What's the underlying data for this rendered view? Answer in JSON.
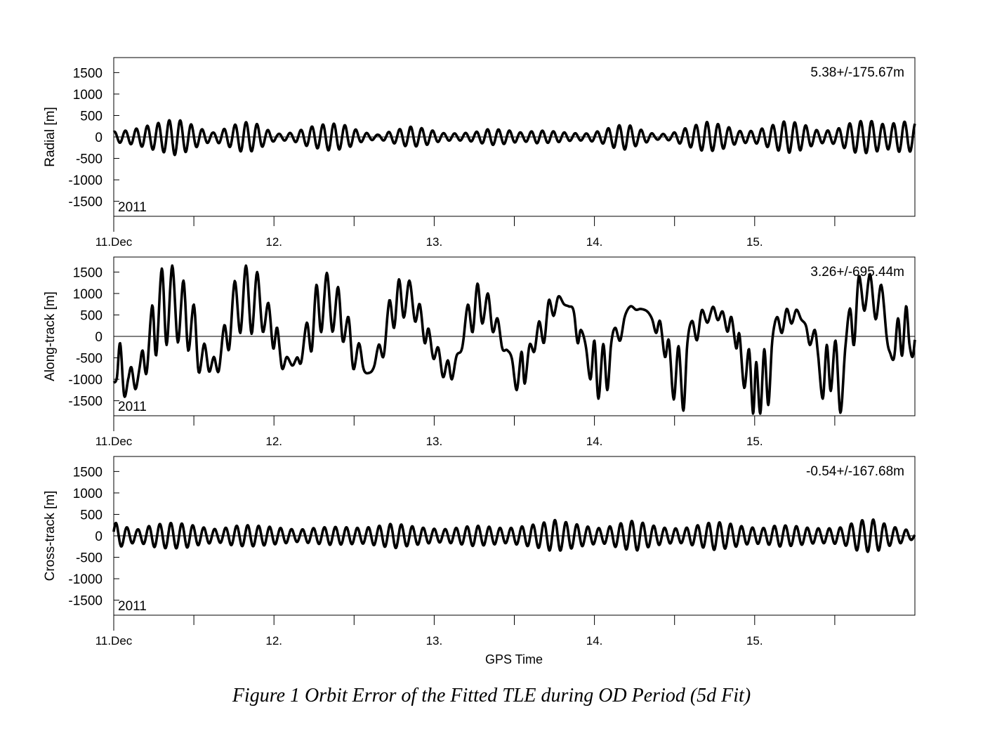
{
  "figure": {
    "caption": "Figure 1 Orbit Error of the Fitted TLE during OD Period (5d Fit)",
    "xlabel": "GPS Time",
    "year_label": "2011"
  },
  "chart_data": [
    {
      "type": "line",
      "ylabel": "Radial [m]",
      "annotation": "5.38+/-175.67m",
      "ylim": [
        -1850,
        1850
      ],
      "yticks": [
        1500,
        1000,
        500,
        0,
        -500,
        -1000,
        -1500
      ],
      "xlim": [
        0,
        5
      ],
      "xticks": [
        0,
        1,
        2,
        3,
        4
      ],
      "xtick_labels": [
        "11.Dec",
        "12.",
        "13.",
        "14.",
        "15."
      ],
      "x_unit": "day",
      "envelope": [
        [
          0.0,
          120
        ],
        [
          0.08,
          150
        ],
        [
          0.15,
          200
        ],
        [
          0.25,
          300
        ],
        [
          0.38,
          420
        ],
        [
          0.45,
          350
        ],
        [
          0.55,
          180
        ],
        [
          0.62,
          100
        ],
        [
          0.7,
          200
        ],
        [
          0.8,
          350
        ],
        [
          0.88,
          330
        ],
        [
          0.95,
          180
        ],
        [
          1.02,
          70
        ],
        [
          1.12,
          100
        ],
        [
          1.22,
          230
        ],
        [
          1.35,
          320
        ],
        [
          1.45,
          270
        ],
        [
          1.55,
          110
        ],
        [
          1.65,
          50
        ],
        [
          1.75,
          150
        ],
        [
          1.85,
          240
        ],
        [
          1.95,
          190
        ],
        [
          2.05,
          90
        ],
        [
          2.15,
          80
        ],
        [
          2.25,
          110
        ],
        [
          2.35,
          190
        ],
        [
          2.45,
          160
        ],
        [
          2.55,
          100
        ],
        [
          2.65,
          150
        ],
        [
          2.75,
          130
        ],
        [
          2.85,
          90
        ],
        [
          2.95,
          80
        ],
        [
          3.05,
          150
        ],
        [
          3.12,
          250
        ],
        [
          3.2,
          300
        ],
        [
          3.28,
          180
        ],
        [
          3.38,
          60
        ],
        [
          3.48,
          80
        ],
        [
          3.58,
          220
        ],
        [
          3.7,
          350
        ],
        [
          3.8,
          280
        ],
        [
          3.9,
          140
        ],
        [
          4.0,
          140
        ],
        [
          4.1,
          260
        ],
        [
          4.2,
          380
        ],
        [
          4.3,
          300
        ],
        [
          4.4,
          140
        ],
        [
          4.5,
          160
        ],
        [
          4.62,
          360
        ],
        [
          4.72,
          380
        ],
        [
          4.82,
          280
        ],
        [
          4.92,
          360
        ],
        [
          5.0,
          330
        ]
      ]
    },
    {
      "type": "line",
      "ylabel": "Along-track [m]",
      "annotation": "3.26+/-695.44m",
      "ylim": [
        -1850,
        1850
      ],
      "yticks": [
        1500,
        1000,
        500,
        0,
        -500,
        -1000,
        -1500
      ],
      "xlim": [
        0,
        5
      ],
      "xticks": [
        0,
        1,
        2,
        3,
        4
      ],
      "xtick_labels": [
        "11.Dec",
        "12.",
        "13.",
        "14.",
        "15."
      ],
      "x_unit": "day",
      "points": [
        [
          0.0,
          -1080
        ],
        [
          0.02,
          -950
        ],
        [
          0.04,
          -160
        ],
        [
          0.065,
          -1380
        ],
        [
          0.09,
          -1000
        ],
        [
          0.11,
          -720
        ],
        [
          0.135,
          -1230
        ],
        [
          0.16,
          -760
        ],
        [
          0.18,
          -330
        ],
        [
          0.205,
          -850
        ],
        [
          0.24,
          720
        ],
        [
          0.265,
          -440
        ],
        [
          0.3,
          1580
        ],
        [
          0.33,
          -200
        ],
        [
          0.365,
          1650
        ],
        [
          0.4,
          -140
        ],
        [
          0.435,
          1300
        ],
        [
          0.465,
          -330
        ],
        [
          0.5,
          740
        ],
        [
          0.53,
          -830
        ],
        [
          0.565,
          -170
        ],
        [
          0.595,
          -820
        ],
        [
          0.625,
          -480
        ],
        [
          0.655,
          -810
        ],
        [
          0.69,
          260
        ],
        [
          0.72,
          -300
        ],
        [
          0.755,
          1290
        ],
        [
          0.79,
          80
        ],
        [
          0.825,
          1650
        ],
        [
          0.86,
          60
        ],
        [
          0.895,
          1500
        ],
        [
          0.93,
          110
        ],
        [
          0.965,
          780
        ],
        [
          0.995,
          -280
        ],
        [
          1.02,
          200
        ],
        [
          1.05,
          -740
        ],
        [
          1.08,
          -480
        ],
        [
          1.115,
          -680
        ],
        [
          1.145,
          -490
        ],
        [
          1.17,
          -600
        ],
        [
          1.205,
          320
        ],
        [
          1.235,
          -340
        ],
        [
          1.265,
          1200
        ],
        [
          1.295,
          100
        ],
        [
          1.33,
          1480
        ],
        [
          1.365,
          110
        ],
        [
          1.4,
          1150
        ],
        [
          1.43,
          -120
        ],
        [
          1.465,
          450
        ],
        [
          1.495,
          -760
        ],
        [
          1.53,
          -160
        ],
        [
          1.56,
          -770
        ],
        [
          1.595,
          -850
        ],
        [
          1.625,
          -700
        ],
        [
          1.655,
          -190
        ],
        [
          1.685,
          -450
        ],
        [
          1.72,
          840
        ],
        [
          1.75,
          200
        ],
        [
          1.78,
          1330
        ],
        [
          1.81,
          440
        ],
        [
          1.845,
          1300
        ],
        [
          1.88,
          350
        ],
        [
          1.91,
          750
        ],
        [
          1.94,
          -150
        ],
        [
          1.965,
          180
        ],
        [
          1.995,
          -520
        ],
        [
          2.025,
          -260
        ],
        [
          2.055,
          -950
        ],
        [
          2.085,
          -560
        ],
        [
          2.11,
          -1000
        ],
        [
          2.14,
          -450
        ],
        [
          2.175,
          -260
        ],
        [
          2.21,
          740
        ],
        [
          2.24,
          100
        ],
        [
          2.27,
          1230
        ],
        [
          2.3,
          300
        ],
        [
          2.335,
          1000
        ],
        [
          2.365,
          110
        ],
        [
          2.395,
          420
        ],
        [
          2.425,
          -280
        ],
        [
          2.455,
          -320
        ],
        [
          2.485,
          -520
        ],
        [
          2.515,
          -1250
        ],
        [
          2.545,
          -360
        ],
        [
          2.565,
          -1100
        ],
        [
          2.595,
          -200
        ],
        [
          2.625,
          -350
        ],
        [
          2.655,
          350
        ],
        [
          2.685,
          -150
        ],
        [
          2.715,
          840
        ],
        [
          2.745,
          480
        ],
        [
          2.775,
          930
        ],
        [
          2.81,
          750
        ],
        [
          2.84,
          700
        ],
        [
          2.87,
          600
        ],
        [
          2.895,
          -150
        ],
        [
          2.915,
          150
        ],
        [
          2.945,
          -200
        ],
        [
          2.975,
          -1000
        ],
        [
          3.0,
          -100
        ],
        [
          3.025,
          -1450
        ],
        [
          3.055,
          -180
        ],
        [
          3.08,
          -1250
        ],
        [
          3.105,
          -150
        ],
        [
          3.13,
          200
        ],
        [
          3.16,
          -100
        ],
        [
          3.19,
          470
        ],
        [
          3.225,
          700
        ],
        [
          3.26,
          620
        ],
        [
          3.29,
          640
        ],
        [
          3.33,
          580
        ],
        [
          3.36,
          400
        ],
        [
          3.385,
          80
        ],
        [
          3.41,
          350
        ],
        [
          3.44,
          -480
        ],
        [
          3.465,
          -100
        ],
        [
          3.495,
          -1470
        ],
        [
          3.525,
          -230
        ],
        [
          3.555,
          -1730
        ],
        [
          3.58,
          -150
        ],
        [
          3.61,
          360
        ],
        [
          3.64,
          -90
        ],
        [
          3.67,
          610
        ],
        [
          3.705,
          320
        ],
        [
          3.74,
          690
        ],
        [
          3.77,
          380
        ],
        [
          3.8,
          580
        ],
        [
          3.83,
          110
        ],
        [
          3.855,
          450
        ],
        [
          3.885,
          -280
        ],
        [
          3.905,
          50
        ],
        [
          3.935,
          -1200
        ],
        [
          3.965,
          -300
        ],
        [
          3.99,
          -1800
        ],
        [
          4.01,
          -600
        ],
        [
          4.035,
          -1800
        ],
        [
          4.06,
          -300
        ],
        [
          4.085,
          -1600
        ],
        [
          4.11,
          -100
        ],
        [
          4.14,
          450
        ],
        [
          4.17,
          80
        ],
        [
          4.2,
          640
        ],
        [
          4.23,
          300
        ],
        [
          4.26,
          620
        ],
        [
          4.29,
          400
        ],
        [
          4.32,
          250
        ],
        [
          4.345,
          -200
        ],
        [
          4.375,
          150
        ],
        [
          4.395,
          -400
        ],
        [
          4.425,
          -1450
        ],
        [
          4.45,
          -200
        ],
        [
          4.475,
          -1270
        ],
        [
          4.505,
          -100
        ],
        [
          4.535,
          -1780
        ],
        [
          4.565,
          -300
        ],
        [
          4.595,
          650
        ],
        [
          4.62,
          -200
        ],
        [
          4.65,
          1400
        ],
        [
          4.685,
          600
        ],
        [
          4.72,
          1450
        ],
        [
          4.755,
          400
        ],
        [
          4.79,
          1200
        ],
        [
          4.825,
          -50
        ],
        [
          4.845,
          -380
        ],
        [
          4.87,
          -500
        ],
        [
          4.895,
          420
        ],
        [
          4.92,
          -450
        ],
        [
          4.945,
          700
        ],
        [
          4.965,
          -150
        ],
        [
          4.985,
          -480
        ],
        [
          5.0,
          -80
        ]
      ]
    },
    {
      "type": "line",
      "ylabel": "Cross-track [m]",
      "annotation": "-0.54+/-167.68m",
      "ylim": [
        -1850,
        1850
      ],
      "yticks": [
        1500,
        1000,
        500,
        0,
        -500,
        -1000,
        -1500
      ],
      "xlim": [
        0,
        5
      ],
      "xticks": [
        0,
        1,
        2,
        3,
        4
      ],
      "xtick_labels": [
        "11.Dec",
        "12.",
        "13.",
        "14.",
        "15."
      ],
      "x_unit": "day",
      "envelope": [
        [
          0.0,
          320
        ],
        [
          0.08,
          200
        ],
        [
          0.15,
          150
        ],
        [
          0.25,
          260
        ],
        [
          0.35,
          300
        ],
        [
          0.45,
          280
        ],
        [
          0.55,
          200
        ],
        [
          0.65,
          150
        ],
        [
          0.75,
          230
        ],
        [
          0.85,
          250
        ],
        [
          0.95,
          220
        ],
        [
          1.05,
          180
        ],
        [
          1.15,
          140
        ],
        [
          1.25,
          180
        ],
        [
          1.35,
          210
        ],
        [
          1.45,
          200
        ],
        [
          1.55,
          180
        ],
        [
          1.65,
          230
        ],
        [
          1.75,
          290
        ],
        [
          1.85,
          230
        ],
        [
          1.95,
          180
        ],
        [
          2.05,
          150
        ],
        [
          2.15,
          190
        ],
        [
          2.25,
          240
        ],
        [
          2.35,
          210
        ],
        [
          2.45,
          170
        ],
        [
          2.55,
          220
        ],
        [
          2.65,
          280
        ],
        [
          2.75,
          370
        ],
        [
          2.85,
          300
        ],
        [
          2.95,
          220
        ],
        [
          3.05,
          170
        ],
        [
          3.15,
          280
        ],
        [
          3.25,
          360
        ],
        [
          3.35,
          250
        ],
        [
          3.45,
          180
        ],
        [
          3.55,
          170
        ],
        [
          3.65,
          250
        ],
        [
          3.75,
          330
        ],
        [
          3.85,
          280
        ],
        [
          3.95,
          200
        ],
        [
          4.05,
          180
        ],
        [
          4.15,
          250
        ],
        [
          4.25,
          230
        ],
        [
          4.35,
          180
        ],
        [
          4.45,
          170
        ],
        [
          4.55,
          200
        ],
        [
          4.65,
          360
        ],
        [
          4.75,
          380
        ],
        [
          4.85,
          220
        ],
        [
          4.95,
          140
        ],
        [
          5.0,
          60
        ]
      ]
    }
  ]
}
